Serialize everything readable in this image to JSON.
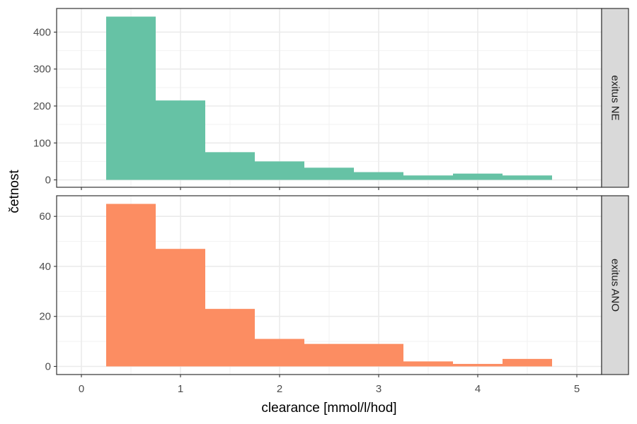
{
  "chart_data": {
    "type": "bar",
    "xlabel": "clearance [mmol/l/hod]",
    "ylabel": "četnost",
    "x_ticks": [
      0,
      1,
      2,
      3,
      4,
      5
    ],
    "xlim": [
      -0.25,
      5.25
    ],
    "bins": [
      [
        0.25,
        0.75
      ],
      [
        0.75,
        1.25
      ],
      [
        1.25,
        1.75
      ],
      [
        1.75,
        2.25
      ],
      [
        2.25,
        2.75
      ],
      [
        2.75,
        3.25
      ],
      [
        3.25,
        3.75
      ],
      [
        3.75,
        4.25
      ],
      [
        4.25,
        4.75
      ]
    ],
    "grid": true,
    "panels": [
      {
        "strip_label": "exitus NE",
        "color": "#66C2A5",
        "values": [
          442,
          215,
          75,
          50,
          33,
          21,
          12,
          17,
          12
        ],
        "ylim": [
          -20,
          464
        ],
        "y_ticks": [
          0,
          100,
          200,
          300,
          400
        ]
      },
      {
        "strip_label": "exitus ANO",
        "color": "#FC8D62",
        "values": [
          65,
          47,
          23,
          11,
          9,
          9,
          2,
          1,
          3
        ],
        "ylim": [
          -3.25,
          68.25
        ],
        "y_ticks": [
          0,
          20,
          40,
          60
        ]
      }
    ]
  }
}
